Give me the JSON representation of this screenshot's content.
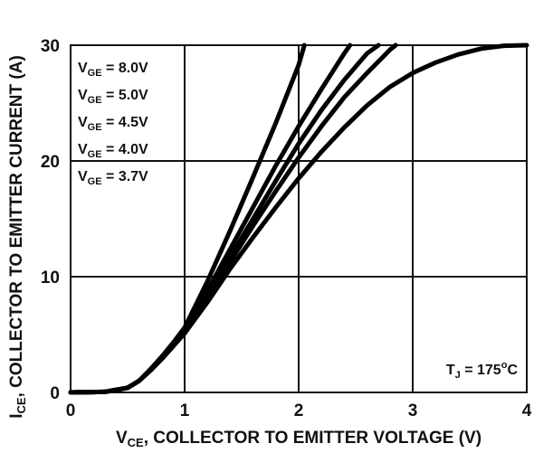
{
  "chart_data": {
    "type": "line",
    "xlabel": {
      "main": "V",
      "sub": "CE",
      "rest": ", COLLECTOR TO EMITTER VOLTAGE (V)"
    },
    "ylabel": {
      "main": "I",
      "sub": "CE",
      "rest": ", COLLECTOR TO EMITTER CURRENT (A)"
    },
    "xlim": [
      0,
      4
    ],
    "ylim": [
      0,
      30
    ],
    "xticks": [
      "0",
      "1",
      "2",
      "3",
      "4"
    ],
    "yticks": [
      "0",
      "10",
      "20",
      "30"
    ],
    "grid": true,
    "annotation": {
      "main": "T",
      "sub": "J",
      "rest": " = 175",
      "sup": "o",
      "unit": "C"
    },
    "legend_position": "top-left",
    "series": [
      {
        "name": {
          "main": "V",
          "sub": "GE",
          "rest": " = 8.0V"
        },
        "x": [
          0,
          0.3,
          0.5,
          0.6,
          0.7,
          0.8,
          0.9,
          1.0,
          1.2,
          1.4,
          1.6,
          1.8,
          2.0,
          2.05
        ],
        "y": [
          0,
          0.05,
          0.4,
          1.0,
          2.0,
          3.1,
          4.3,
          5.6,
          9.6,
          14.0,
          18.6,
          23.3,
          28.3,
          30
        ]
      },
      {
        "name": {
          "main": "V",
          "sub": "GE",
          "rest": " = 5.0V"
        },
        "x": [
          0,
          0.3,
          0.5,
          0.6,
          0.7,
          0.8,
          0.9,
          1.0,
          1.2,
          1.4,
          1.6,
          1.8,
          2.0,
          2.2,
          2.4,
          2.45
        ],
        "y": [
          0,
          0.05,
          0.4,
          1.0,
          1.9,
          3.0,
          4.2,
          5.4,
          8.8,
          12.4,
          16.0,
          19.6,
          23.0,
          26.2,
          29.3,
          30
        ]
      },
      {
        "name": {
          "main": "V",
          "sub": "GE",
          "rest": " = 4.5V"
        },
        "x": [
          0,
          0.3,
          0.5,
          0.6,
          0.7,
          0.8,
          0.9,
          1.0,
          1.2,
          1.4,
          1.6,
          1.8,
          2.0,
          2.2,
          2.4,
          2.6,
          2.7
        ],
        "y": [
          0,
          0.05,
          0.4,
          1.0,
          1.9,
          3.0,
          4.1,
          5.3,
          8.4,
          11.7,
          15.0,
          18.3,
          21.5,
          24.4,
          27.0,
          29.3,
          30
        ]
      },
      {
        "name": {
          "main": "V",
          "sub": "GE",
          "rest": " = 4.0V"
        },
        "x": [
          0,
          0.3,
          0.5,
          0.6,
          0.7,
          0.8,
          0.9,
          1.0,
          1.2,
          1.4,
          1.6,
          1.8,
          2.0,
          2.2,
          2.4,
          2.6,
          2.8,
          2.85
        ],
        "y": [
          0,
          0.05,
          0.4,
          1.0,
          1.9,
          2.9,
          4.0,
          5.2,
          8.2,
          11.3,
          14.4,
          17.4,
          20.3,
          23.0,
          25.5,
          27.6,
          29.6,
          30
        ]
      },
      {
        "name": {
          "main": "V",
          "sub": "GE",
          "rest": " = 3.7V"
        },
        "x": [
          0,
          0.3,
          0.5,
          0.6,
          0.7,
          0.8,
          0.9,
          1.0,
          1.2,
          1.4,
          1.6,
          1.8,
          2.0,
          2.2,
          2.4,
          2.6,
          2.8,
          3.0,
          3.2,
          3.4,
          3.6,
          3.8,
          4.0
        ],
        "y": [
          0,
          0.05,
          0.4,
          1.0,
          1.9,
          2.9,
          4.0,
          5.1,
          7.8,
          10.7,
          13.4,
          16.0,
          18.5,
          20.8,
          22.9,
          24.8,
          26.4,
          27.6,
          28.5,
          29.2,
          29.7,
          29.95,
          30
        ]
      }
    ]
  }
}
